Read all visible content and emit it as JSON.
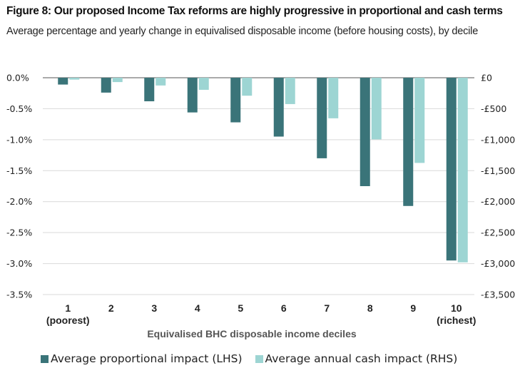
{
  "chart_data": {
    "type": "bar",
    "title": "Figure 8: Our proposed Income Tax reforms are highly progressive in proportional and cash terms",
    "subtitle": "Average percentage and yearly change in equivalised disposable income (before housing costs), by decile",
    "xlabel": "Equivalised BHC disposable income deciles",
    "categories": [
      "1",
      "2",
      "3",
      "4",
      "5",
      "6",
      "7",
      "8",
      "9",
      "10"
    ],
    "category_sublabels": [
      "(poorest)",
      "",
      "",
      "",
      "",
      "",
      "",
      "",
      "",
      "(richest)"
    ],
    "series": [
      {
        "name": "Average proportional impact (LHS)",
        "axis": "left",
        "color": "#3a7479",
        "values": [
          -0.11,
          -0.24,
          -0.38,
          -0.56,
          -0.72,
          -0.95,
          -1.3,
          -1.75,
          -2.07,
          -2.95
        ]
      },
      {
        "name": "Average annual cash impact (RHS)",
        "axis": "right",
        "color": "#9dd5d3",
        "values": [
          -30,
          -70,
          -125,
          -195,
          -290,
          -425,
          -655,
          -995,
          -1375,
          -2980
        ]
      }
    ],
    "left_axis": {
      "ylim": [
        -3.5,
        0
      ],
      "ticks": [
        0,
        -0.5,
        -1.0,
        -1.5,
        -2.0,
        -2.5,
        -3.0,
        -3.5
      ],
      "tick_labels": [
        "0.0%",
        "-0.5%",
        "-1.0%",
        "-1.5%",
        "-2.0%",
        "-2.5%",
        "-3.0%",
        "-3.5%"
      ]
    },
    "right_axis": {
      "ylim": [
        -3500,
        0
      ],
      "ticks": [
        0,
        -500,
        -1000,
        -1500,
        -2000,
        -2500,
        -3000,
        -3500
      ],
      "tick_labels": [
        "£0",
        "-£500",
        "-£1,000",
        "-£1,500",
        "-£2,000",
        "-£2,500",
        "-£3,000",
        "-£3,500"
      ]
    },
    "grid": true,
    "legend_position": "bottom-left"
  }
}
